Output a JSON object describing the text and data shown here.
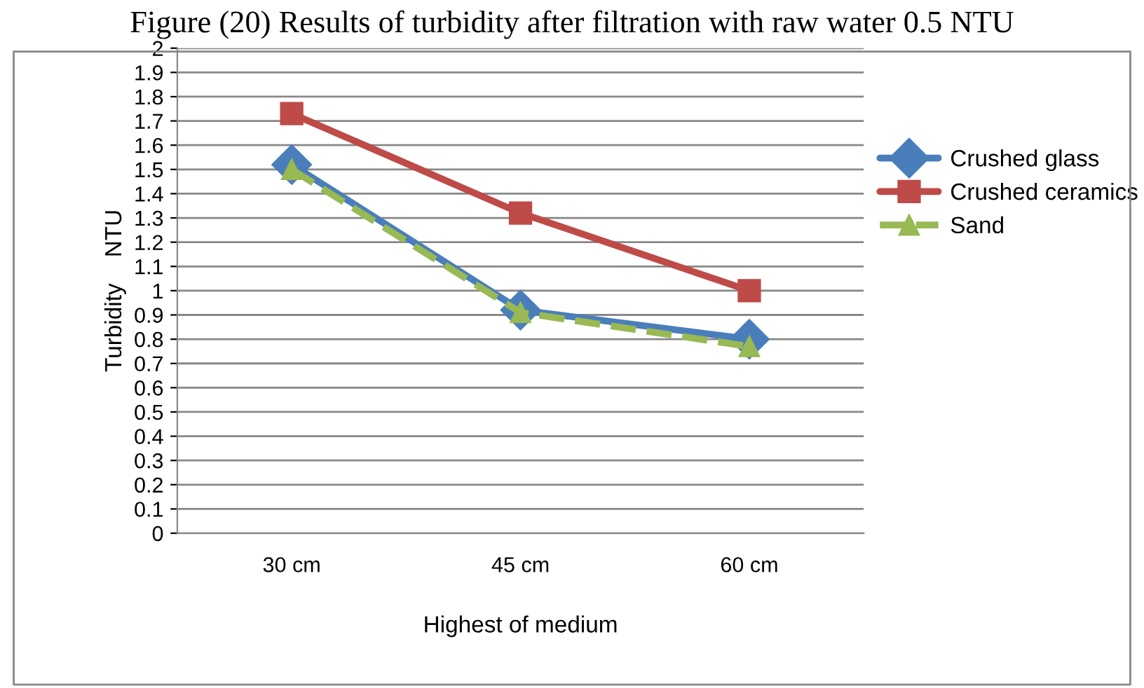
{
  "chart_data": {
    "type": "line",
    "title": "Figure (20) Results of turbidity after filtration with raw water 0.5 NTU",
    "categories": [
      "30 cm",
      "45 cm",
      "60 cm"
    ],
    "xlabel": "Highest of medium",
    "ylabel": "Turbidity    NTU",
    "series": [
      {
        "name": "Crushed glass",
        "color": "#4a7ebb",
        "values": [
          1.52,
          0.92,
          0.8
        ],
        "marker": "diamond",
        "line_style": "solid"
      },
      {
        "name": "Crushed ceramics",
        "color": "#be4b48",
        "values": [
          1.73,
          1.32,
          1.0
        ],
        "marker": "square",
        "line_style": "solid"
      },
      {
        "name": "Sand",
        "color": "#98b954",
        "values": [
          1.5,
          0.91,
          0.77
        ],
        "marker": "triangle",
        "line_style": "dashed"
      }
    ],
    "ylim": [
      0,
      2
    ],
    "yticks": [
      0,
      0.1,
      0.2,
      0.3,
      0.4,
      0.5,
      0.6,
      0.7,
      0.8,
      0.9,
      1,
      1.1,
      1.2,
      1.3,
      1.4,
      1.5,
      1.6,
      1.7,
      1.8,
      1.9,
      2
    ],
    "grid": "y",
    "legend": "right"
  }
}
